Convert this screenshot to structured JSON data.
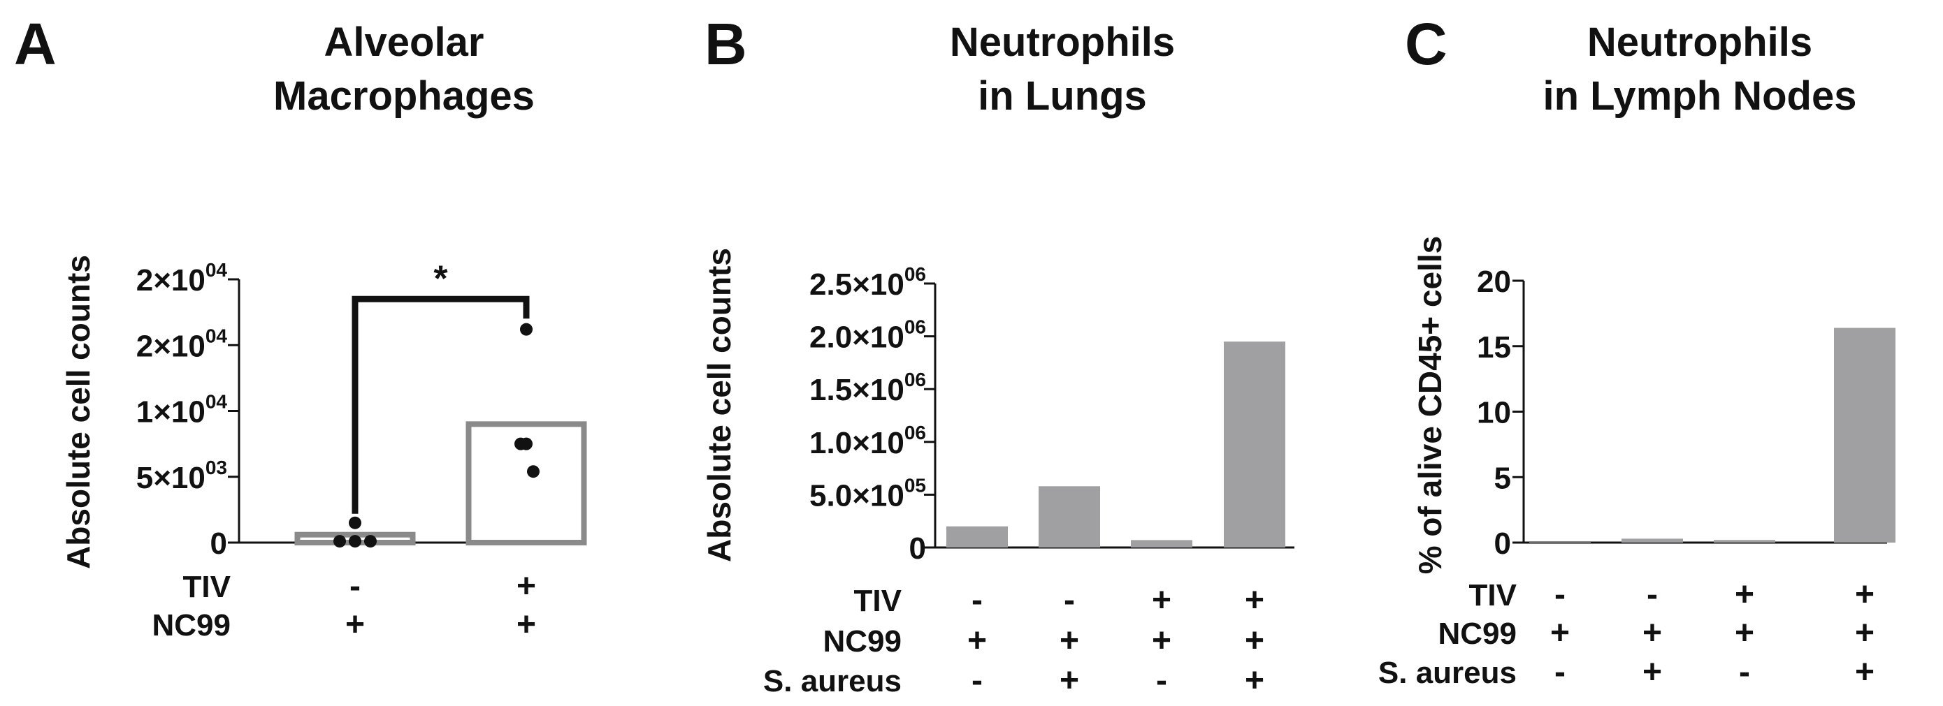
{
  "colors": {
    "bar": "#a0a0a3",
    "outline": "#8a8a8a",
    "ink": "#111111"
  },
  "chart_data": [
    {
      "panel": "A",
      "type": "bar",
      "title_lines": [
        "Alveolar",
        "Macrophages"
      ],
      "ylabel": "Absolute cell counts",
      "ylim": [
        0,
        20000
      ],
      "yticks": [
        {
          "value": 0,
          "mant": "0",
          "exp": ""
        },
        {
          "value": 5000,
          "mant": "5×10",
          "exp": "03"
        },
        {
          "value": 10000,
          "mant": "1×10",
          "exp": "04"
        },
        {
          "value": 15000,
          "mant": "2×10",
          "exp": "04"
        },
        {
          "value": 20000,
          "mant": "2×10",
          "exp": "04"
        }
      ],
      "bar_style": "hollow",
      "values": [
        600,
        9000
      ],
      "points": [
        [
          100,
          1500,
          100,
          100
        ],
        [
          16200,
          7500,
          7500,
          5400
        ]
      ],
      "significance": {
        "from": 0,
        "to": 1,
        "label": "*",
        "level": 18500
      },
      "conditions": [
        {
          "label": "TIV",
          "values": [
            "-",
            "+"
          ]
        },
        {
          "label": "NC99",
          "values": [
            "+",
            "+"
          ]
        }
      ]
    },
    {
      "panel": "B",
      "type": "bar",
      "title_lines": [
        "Neutrophils",
        "in Lungs"
      ],
      "ylabel": "Absolute cell counts",
      "ylim": [
        0,
        2500000
      ],
      "yticks": [
        {
          "value": 0,
          "mant": "0",
          "exp": ""
        },
        {
          "value": 500000,
          "mant": "5.0×10",
          "exp": "05"
        },
        {
          "value": 1000000,
          "mant": "1.0×10",
          "exp": "06"
        },
        {
          "value": 1500000,
          "mant": "1.5×10",
          "exp": "06"
        },
        {
          "value": 2000000,
          "mant": "2.0×10",
          "exp": "06"
        },
        {
          "value": 2500000,
          "mant": "2.5×10",
          "exp": "06"
        }
      ],
      "bar_style": "filled",
      "values": [
        200000,
        580000,
        70000,
        1950000
      ],
      "conditions": [
        {
          "label": "TIV",
          "values": [
            "-",
            "-",
            "+",
            "+"
          ]
        },
        {
          "label": "NC99",
          "values": [
            "+",
            "+",
            "+",
            "+"
          ]
        },
        {
          "label": "S. aureus",
          "values": [
            "-",
            "+",
            "-",
            "+"
          ]
        }
      ]
    },
    {
      "panel": "C",
      "type": "bar",
      "title_lines": [
        "Neutrophils",
        "in Lymph Nodes"
      ],
      "ylabel": "% of alive CD45+ cells",
      "ylim": [
        0,
        20
      ],
      "yticks": [
        {
          "value": 0,
          "mant": "0",
          "exp": ""
        },
        {
          "value": 5,
          "mant": "5",
          "exp": ""
        },
        {
          "value": 10,
          "mant": "10",
          "exp": ""
        },
        {
          "value": 15,
          "mant": "15",
          "exp": ""
        },
        {
          "value": 20,
          "mant": "20",
          "exp": ""
        }
      ],
      "bar_style": "filled",
      "values": [
        0.05,
        0.3,
        0.2,
        16.4
      ],
      "conditions": [
        {
          "label": "TIV",
          "values": [
            "-",
            "-",
            "+",
            "+"
          ]
        },
        {
          "label": "NC99",
          "values": [
            "+",
            "+",
            "+",
            "+"
          ]
        },
        {
          "label": "S. aureus",
          "values": [
            "-",
            "+",
            "-",
            "+"
          ]
        }
      ]
    }
  ]
}
